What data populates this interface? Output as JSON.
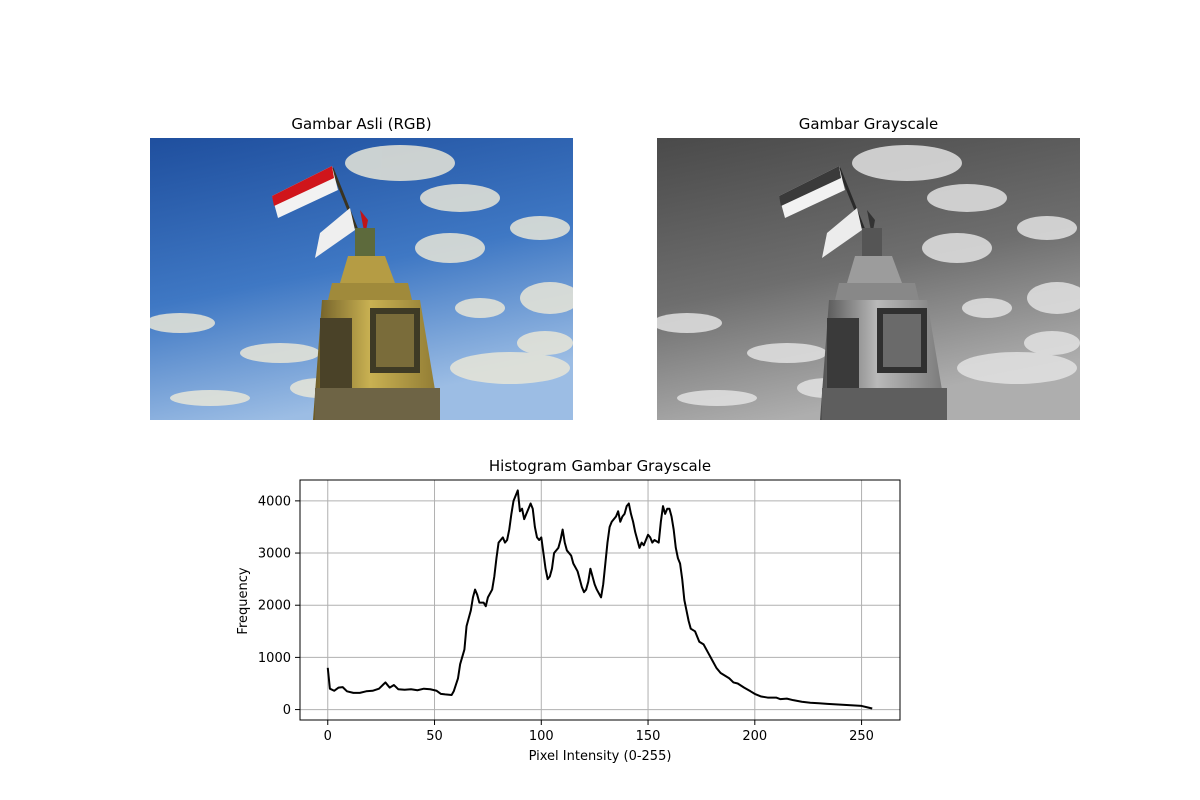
{
  "panels": {
    "rgb_title": "Gambar Asli (RGB)",
    "gray_title": "Gambar Grayscale"
  },
  "colors": {
    "sky_top": "#2a5da8",
    "sky_bottom": "#8bb4e0",
    "monument": "#b8a04a",
    "flag_red": "#d0151b",
    "flag_white": "#f4f4f4",
    "line": "#000000",
    "grid": "#b0b0b0"
  },
  "chart_data": {
    "type": "line",
    "title": "Histogram Gambar Grayscale",
    "xlabel": "Pixel Intensity (0-255)",
    "ylabel": "Frequency",
    "xlim": [
      -13,
      268
    ],
    "ylim": [
      -200,
      4400
    ],
    "xticks": [
      0,
      50,
      100,
      150,
      200,
      250
    ],
    "yticks": [
      0,
      1000,
      2000,
      3000,
      4000
    ],
    "grid": true,
    "points": [
      [
        0,
        800
      ],
      [
        1,
        400
      ],
      [
        3,
        360
      ],
      [
        5,
        420
      ],
      [
        7,
        430
      ],
      [
        9,
        350
      ],
      [
        12,
        320
      ],
      [
        15,
        320
      ],
      [
        18,
        350
      ],
      [
        21,
        360
      ],
      [
        24,
        400
      ],
      [
        26,
        480
      ],
      [
        27,
        520
      ],
      [
        29,
        420
      ],
      [
        31,
        470
      ],
      [
        33,
        390
      ],
      [
        36,
        380
      ],
      [
        39,
        390
      ],
      [
        42,
        370
      ],
      [
        45,
        400
      ],
      [
        48,
        390
      ],
      [
        51,
        360
      ],
      [
        53,
        300
      ],
      [
        55,
        290
      ],
      [
        58,
        280
      ],
      [
        59,
        350
      ],
      [
        61,
        600
      ],
      [
        62,
        870
      ],
      [
        64,
        1150
      ],
      [
        65,
        1600
      ],
      [
        66,
        1750
      ],
      [
        67,
        1900
      ],
      [
        68,
        2150
      ],
      [
        69,
        2300
      ],
      [
        70,
        2200
      ],
      [
        71,
        2050
      ],
      [
        73,
        2050
      ],
      [
        74,
        1980
      ],
      [
        75,
        2150
      ],
      [
        77,
        2300
      ],
      [
        78,
        2550
      ],
      [
        79,
        2900
      ],
      [
        80,
        3200
      ],
      [
        82,
        3300
      ],
      [
        83,
        3200
      ],
      [
        84,
        3250
      ],
      [
        85,
        3450
      ],
      [
        86,
        3750
      ],
      [
        87,
        4000
      ],
      [
        88,
        4100
      ],
      [
        89,
        4200
      ],
      [
        90,
        3800
      ],
      [
        91,
        3850
      ],
      [
        92,
        3650
      ],
      [
        93,
        3750
      ],
      [
        94,
        3850
      ],
      [
        95,
        3950
      ],
      [
        96,
        3850
      ],
      [
        97,
        3500
      ],
      [
        98,
        3300
      ],
      [
        99,
        3250
      ],
      [
        100,
        3300
      ],
      [
        101,
        3000
      ],
      [
        102,
        2700
      ],
      [
        103,
        2500
      ],
      [
        104,
        2550
      ],
      [
        105,
        2700
      ],
      [
        106,
        3000
      ],
      [
        108,
        3100
      ],
      [
        109,
        3250
      ],
      [
        110,
        3450
      ],
      [
        111,
        3200
      ],
      [
        112,
        3050
      ],
      [
        114,
        2950
      ],
      [
        115,
        2800
      ],
      [
        117,
        2650
      ],
      [
        118,
        2500
      ],
      [
        119,
        2350
      ],
      [
        120,
        2250
      ],
      [
        121,
        2300
      ],
      [
        122,
        2450
      ],
      [
        123,
        2700
      ],
      [
        124,
        2550
      ],
      [
        125,
        2400
      ],
      [
        126,
        2300
      ],
      [
        128,
        2150
      ],
      [
        129,
        2400
      ],
      [
        130,
        2800
      ],
      [
        131,
        3200
      ],
      [
        132,
        3500
      ],
      [
        133,
        3600
      ],
      [
        135,
        3700
      ],
      [
        136,
        3800
      ],
      [
        137,
        3600
      ],
      [
        138,
        3700
      ],
      [
        139,
        3750
      ],
      [
        140,
        3900
      ],
      [
        141,
        3950
      ],
      [
        142,
        3750
      ],
      [
        143,
        3600
      ],
      [
        144,
        3400
      ],
      [
        145,
        3250
      ],
      [
        146,
        3100
      ],
      [
        147,
        3200
      ],
      [
        148,
        3150
      ],
      [
        149,
        3250
      ],
      [
        150,
        3350
      ],
      [
        151,
        3300
      ],
      [
        152,
        3200
      ],
      [
        153,
        3250
      ],
      [
        155,
        3200
      ],
      [
        156,
        3600
      ],
      [
        157,
        3900
      ],
      [
        158,
        3750
      ],
      [
        159,
        3850
      ],
      [
        160,
        3850
      ],
      [
        161,
        3700
      ],
      [
        162,
        3450
      ],
      [
        163,
        3100
      ],
      [
        164,
        2900
      ],
      [
        165,
        2800
      ],
      [
        166,
        2500
      ],
      [
        167,
        2100
      ],
      [
        168,
        1900
      ],
      [
        169,
        1700
      ],
      [
        170,
        1550
      ],
      [
        172,
        1500
      ],
      [
        174,
        1300
      ],
      [
        176,
        1250
      ],
      [
        178,
        1100
      ],
      [
        180,
        950
      ],
      [
        182,
        800
      ],
      [
        184,
        700
      ],
      [
        186,
        650
      ],
      [
        188,
        600
      ],
      [
        190,
        520
      ],
      [
        192,
        500
      ],
      [
        195,
        420
      ],
      [
        198,
        350
      ],
      [
        200,
        300
      ],
      [
        203,
        250
      ],
      [
        206,
        230
      ],
      [
        210,
        230
      ],
      [
        212,
        200
      ],
      [
        215,
        210
      ],
      [
        218,
        180
      ],
      [
        222,
        150
      ],
      [
        226,
        130
      ],
      [
        230,
        120
      ],
      [
        234,
        110
      ],
      [
        238,
        100
      ],
      [
        242,
        90
      ],
      [
        246,
        80
      ],
      [
        250,
        70
      ],
      [
        253,
        40
      ],
      [
        255,
        20
      ]
    ]
  }
}
